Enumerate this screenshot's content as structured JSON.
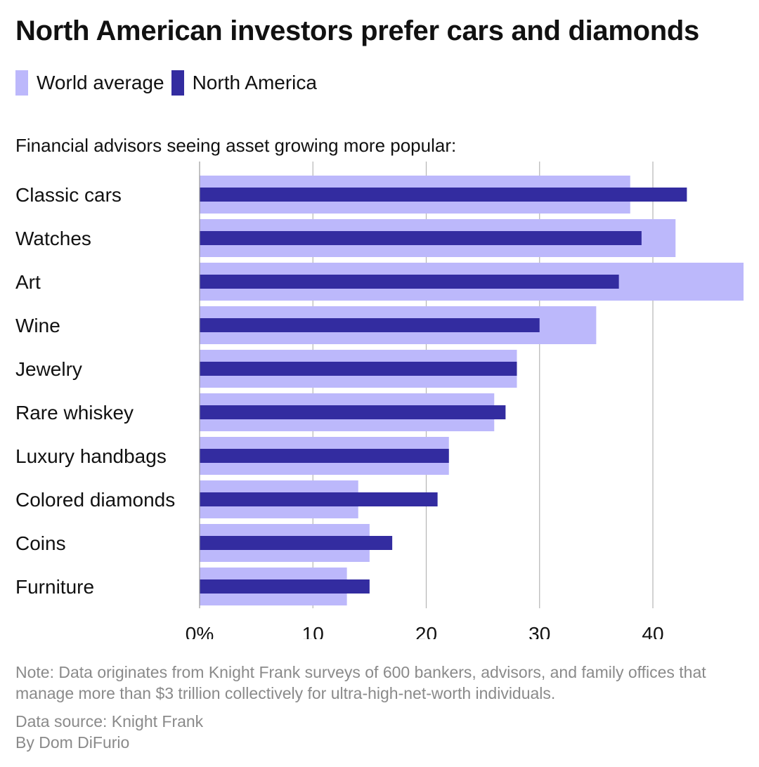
{
  "header": {
    "title": "North American investors prefer cars and diamonds",
    "subtitle": "Financial advisors seeing asset growing more popular:"
  },
  "legend": [
    {
      "label": "World average",
      "color": "#bcb8fb"
    },
    {
      "label": "North America",
      "color": "#332ca0"
    }
  ],
  "chart_data": {
    "type": "bar",
    "orientation": "horizontal",
    "categories": [
      "Classic cars",
      "Watches",
      "Art",
      "Wine",
      "Jewelry",
      "Rare whiskey",
      "Luxury handbags",
      "Colored diamonds",
      "Coins",
      "Furniture"
    ],
    "series": [
      {
        "name": "World average",
        "color": "#bcb8fb",
        "values": [
          38,
          42,
          48,
          35,
          28,
          26,
          22,
          14,
          15,
          13
        ]
      },
      {
        "name": "North America",
        "color": "#332ca0",
        "values": [
          43,
          39,
          37,
          30,
          28,
          27,
          22,
          21,
          17,
          15
        ]
      }
    ],
    "xticks": [
      0,
      10,
      20,
      30,
      40
    ],
    "xtick_labels": [
      "0%",
      "10",
      "20",
      "30",
      "40"
    ],
    "xlim": [
      0,
      48
    ],
    "grid": true,
    "legend_position": "top-left"
  },
  "footer": {
    "note": "Note: Data originates from Knight Frank surveys of 600 bankers, advisors, and family offices that manage more than $3 trillion collectively for ultra-high-net-worth individuals.",
    "source": "Data source: Knight Frank",
    "byline": "By Dom DiFurio"
  }
}
